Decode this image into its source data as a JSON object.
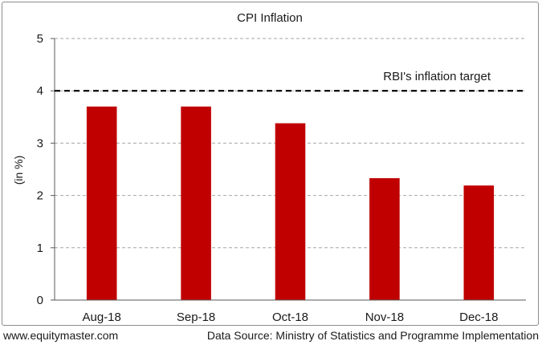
{
  "chart_data": {
    "type": "bar",
    "title": "CPI Inflation",
    "ylabel": "(in %)",
    "xlabel": "",
    "categories": [
      "Aug-18",
      "Sep-18",
      "Oct-18",
      "Nov-18",
      "Dec-18"
    ],
    "values": [
      3.7,
      3.7,
      3.38,
      2.33,
      2.19
    ],
    "ylim": [
      0,
      5
    ],
    "yticks": [
      "0",
      "1",
      "2",
      "3",
      "4",
      "5"
    ],
    "bar_color": "#c00000",
    "grid": true,
    "reference_line": {
      "value": 4,
      "label": "RBI's inflation target"
    }
  },
  "footer": {
    "left": "www.equitymaster.com",
    "right": "Data Source: Ministry of Statistics and Programme Implementation"
  }
}
